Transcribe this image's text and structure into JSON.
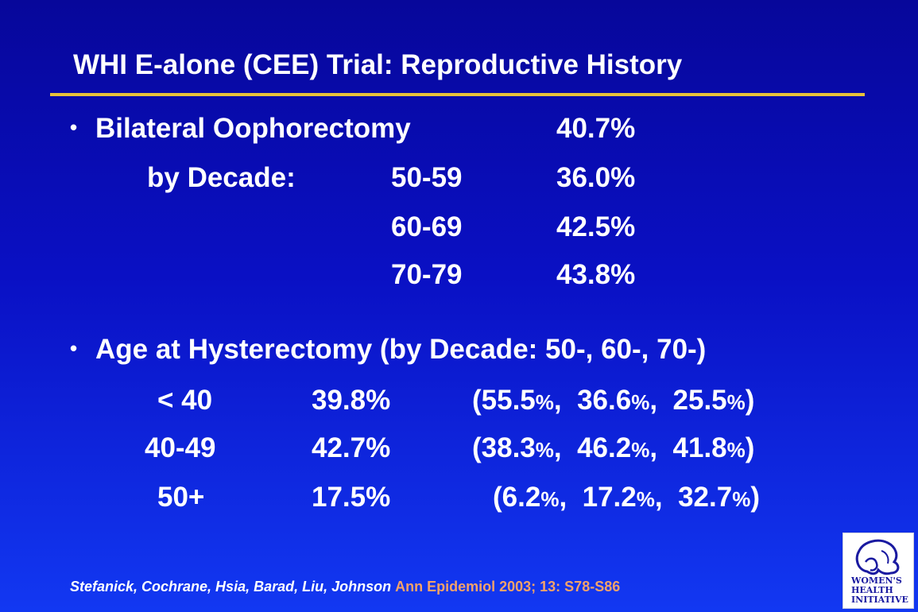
{
  "title": "WHI E-alone  (CEE)  Trial: Reproductive History",
  "section1": {
    "label": "Bilateral Oophorectomy",
    "value": "40.7%",
    "by_decade_label": "by Decade:",
    "rows": [
      {
        "decade": "50-59",
        "value": "36.0%"
      },
      {
        "decade": "60-69",
        "value": "42.5%"
      },
      {
        "decade": "70-79",
        "value": "43.8%"
      }
    ]
  },
  "section2": {
    "label": "Age at Hysterectomy (by Decade: 50-, 60-, 70-)",
    "rows": [
      {
        "age": "< 40",
        "value": "39.8%",
        "d1": "55.5",
        "d2": "36.6",
        "d3": "25.5"
      },
      {
        "age": "40-49",
        "value": "42.7%",
        "d1": "38.3",
        "d2": "46.2",
        "d3": "41.8"
      },
      {
        "age": "50+",
        "value": "17.5%",
        "d1": "6.2",
        "d2": "17.2",
        "d3": "32.7"
      }
    ]
  },
  "citation": {
    "authors": "Stefanick, Cochrane, Hsia, Barad, Liu, Johnson",
    "journal": "Ann Epidemiol 2003; 13: S78-S86"
  },
  "logo": {
    "text_line1": "WOMEN'S",
    "text_line2": "HEALTH",
    "text_line3": "INITIATIVE"
  }
}
